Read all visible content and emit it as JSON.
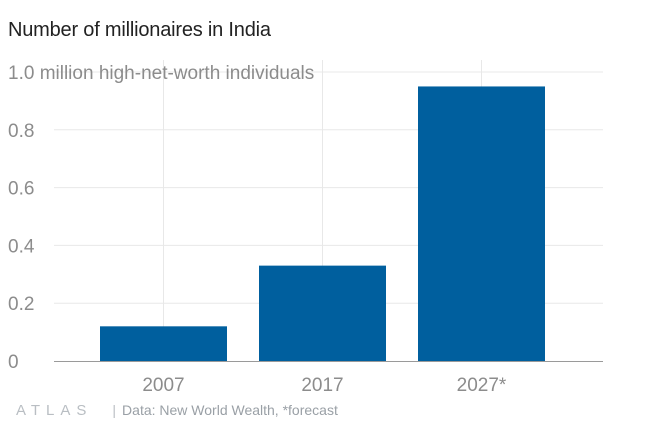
{
  "header": {
    "title": "Number of millionaires in India"
  },
  "footer": {
    "brand": "ATLAS",
    "separator": "|",
    "source": "Data: New World Wealth, *forecast"
  },
  "colors": {
    "bar": "#005f9e",
    "grid": "#e8e8e8",
    "baseline": "#9a9a9a",
    "tick_text": "#8c8c8c"
  },
  "chart_data": {
    "type": "bar",
    "title": "Number of millionaires in India",
    "ylabel": "million high-net-worth individuals",
    "categories": [
      "2007",
      "2017",
      "2027*"
    ],
    "values": [
      0.12,
      0.33,
      0.95
    ],
    "ylim": [
      0,
      1.0
    ],
    "yticks": [
      {
        "value": 0,
        "label": "0"
      },
      {
        "value": 0.2,
        "label": "0.2"
      },
      {
        "value": 0.4,
        "label": "0.4"
      },
      {
        "value": 0.6,
        "label": "0.6"
      },
      {
        "value": 0.8,
        "label": "0.8"
      },
      {
        "value": 1.0,
        "label": "1.0 million high-net-worth individuals"
      }
    ],
    "grid": true,
    "legend": "none"
  }
}
